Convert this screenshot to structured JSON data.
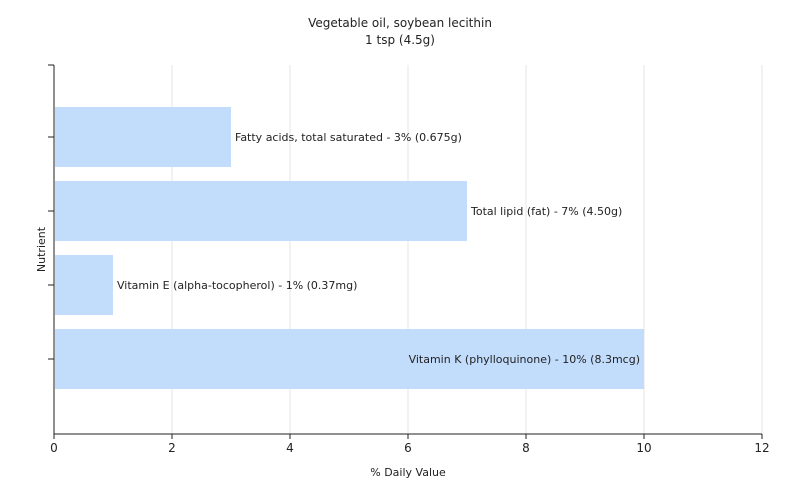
{
  "chart_data": {
    "type": "bar",
    "orientation": "horizontal",
    "title": "Vegetable oil, soybean lecithin",
    "subtitle": "1 tsp (4.5g)",
    "xlabel": "% Daily Value",
    "ylabel": "Nutrient",
    "xlim": [
      0,
      12
    ],
    "xticks": [
      "0",
      "2",
      "4",
      "6",
      "8",
      "10",
      "12"
    ],
    "grid": true,
    "bar_color": "#c2dcfc",
    "bars": [
      {
        "label": "Fatty acids, total saturated - 3% (0.675g)",
        "value": 3
      },
      {
        "label": "Total lipid (fat) - 7% (4.50g)",
        "value": 7
      },
      {
        "label": "Vitamin E (alpha-tocopherol) - 1% (0.37mg)",
        "value": 1
      },
      {
        "label": "Vitamin K (phylloquinone) - 10% (8.3mcg)",
        "value": 10
      }
    ]
  }
}
